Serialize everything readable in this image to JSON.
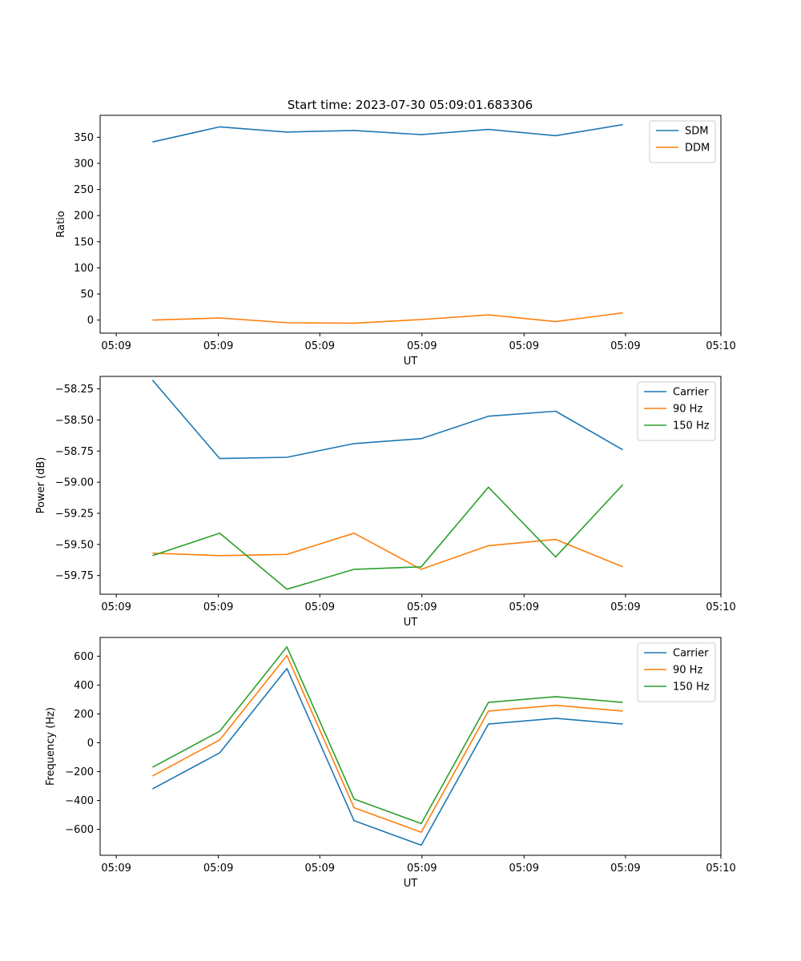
{
  "figure": {
    "title": "Start time: 2023-07-30 05:09:01.683306"
  },
  "chart_data": [
    {
      "type": "line",
      "ylabel": "Ratio",
      "xlabel": "UT",
      "x": [
        1,
        2,
        3,
        4,
        5,
        6,
        7,
        8
      ],
      "xlim": [
        0.22,
        9.46
      ],
      "ylim": [
        -25,
        392
      ],
      "yticks": [
        0,
        50,
        100,
        150,
        200,
        250,
        300,
        350
      ],
      "ytick_labels": [
        "0",
        "50",
        "100",
        "150",
        "200",
        "250",
        "300",
        "350"
      ],
      "xticks": [
        0.46,
        1.98,
        3.49,
        5.01,
        6.53,
        8.04,
        9.46
      ],
      "xtick_labels": [
        "05:09",
        "05:09",
        "05:09",
        "05:09",
        "05:09",
        "05:09",
        "05:10"
      ],
      "legend": "top-right",
      "series": [
        {
          "name": "SDM",
          "color": "#1f77b4",
          "values": [
            341,
            370,
            360,
            363,
            355,
            365,
            353,
            374
          ]
        },
        {
          "name": "DDM",
          "color": "#ff7f0e",
          "values": [
            0,
            4,
            -5,
            -6,
            1,
            10,
            -3,
            14
          ]
        }
      ]
    },
    {
      "type": "line",
      "ylabel": "Power (dB)",
      "xlabel": "UT",
      "x": [
        1,
        2,
        3,
        4,
        5,
        6,
        7,
        8
      ],
      "xlim": [
        0.22,
        9.46
      ],
      "ylim": [
        -59.9,
        -58.15
      ],
      "yticks": [
        -59.75,
        -59.5,
        -59.25,
        -59.0,
        -58.75,
        -58.5,
        -58.25
      ],
      "ytick_labels": [
        "−59.75",
        "−59.50",
        "−59.25",
        "−59.00",
        "−58.75",
        "−58.50",
        "−58.25"
      ],
      "xticks": [
        0.46,
        1.98,
        3.49,
        5.01,
        6.53,
        8.04,
        9.46
      ],
      "xtick_labels": [
        "05:09",
        "05:09",
        "05:09",
        "05:09",
        "05:09",
        "05:09",
        "05:10"
      ],
      "legend": "top-right",
      "series": [
        {
          "name": "Carrier",
          "color": "#1f77b4",
          "values": [
            -58.18,
            -58.81,
            -58.8,
            -58.69,
            -58.65,
            -58.47,
            -58.43,
            -58.74
          ]
        },
        {
          "name": "90 Hz",
          "color": "#ff7f0e",
          "values": [
            -59.57,
            -59.59,
            -59.58,
            -59.41,
            -59.7,
            -59.51,
            -59.46,
            -59.68
          ]
        },
        {
          "name": "150 Hz",
          "color": "#2ca02c",
          "values": [
            -59.59,
            -59.41,
            -59.86,
            -59.7,
            -59.68,
            -59.04,
            -59.6,
            -59.02
          ]
        }
      ]
    },
    {
      "type": "line",
      "ylabel": "Frequency (Hz)",
      "xlabel": "UT",
      "x": [
        1,
        2,
        3,
        4,
        5,
        6,
        7,
        8
      ],
      "xlim": [
        0.22,
        9.46
      ],
      "ylim": [
        -780,
        730
      ],
      "yticks": [
        -600,
        -400,
        -200,
        0,
        200,
        400,
        600
      ],
      "ytick_labels": [
        "−600",
        "−400",
        "−200",
        "0",
        "200",
        "400",
        "600"
      ],
      "xticks": [
        0.46,
        1.98,
        3.49,
        5.01,
        6.53,
        8.04,
        9.46
      ],
      "xtick_labels": [
        "05:09",
        "05:09",
        "05:09",
        "05:09",
        "05:09",
        "05:09",
        "05:10"
      ],
      "legend": "top-right",
      "series": [
        {
          "name": "Carrier",
          "color": "#1f77b4",
          "values": [
            -320,
            -70,
            515,
            -540,
            -710,
            130,
            170,
            130
          ]
        },
        {
          "name": "90 Hz",
          "color": "#ff7f0e",
          "values": [
            -230,
            20,
            605,
            -450,
            -620,
            220,
            260,
            220
          ]
        },
        {
          "name": "150 Hz",
          "color": "#2ca02c",
          "values": [
            -170,
            80,
            665,
            -390,
            -560,
            280,
            320,
            280
          ]
        }
      ]
    }
  ]
}
